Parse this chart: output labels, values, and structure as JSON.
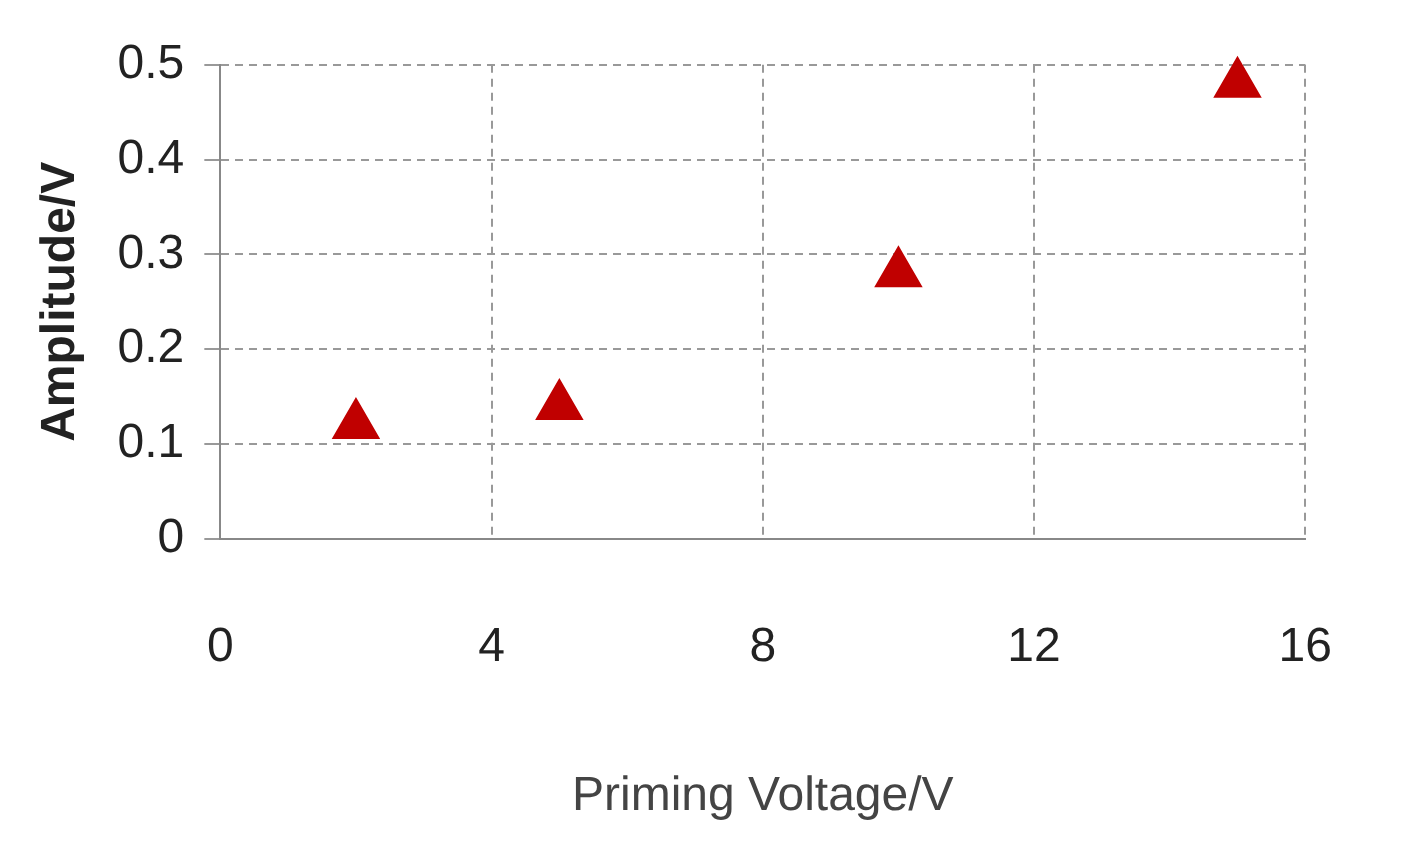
{
  "chart_data": {
    "type": "scatter",
    "xlabel": "Priming Voltage/V",
    "ylabel": "Amplitude/V",
    "x": [
      2,
      5,
      10,
      15
    ],
    "series": [
      {
        "color": "#c00000",
        "values": [
          0.12,
          0.14,
          0.28,
          0.48
        ]
      }
    ],
    "xlim": [
      0,
      16
    ],
    "xticks": [
      0,
      4,
      8,
      12,
      16
    ],
    "ylim": [
      0,
      0.5
    ],
    "yticks": [
      0,
      0.1,
      0.2,
      0.3,
      0.4,
      0.5
    ],
    "grid": true,
    "legend": false,
    "marker": "triangle"
  }
}
